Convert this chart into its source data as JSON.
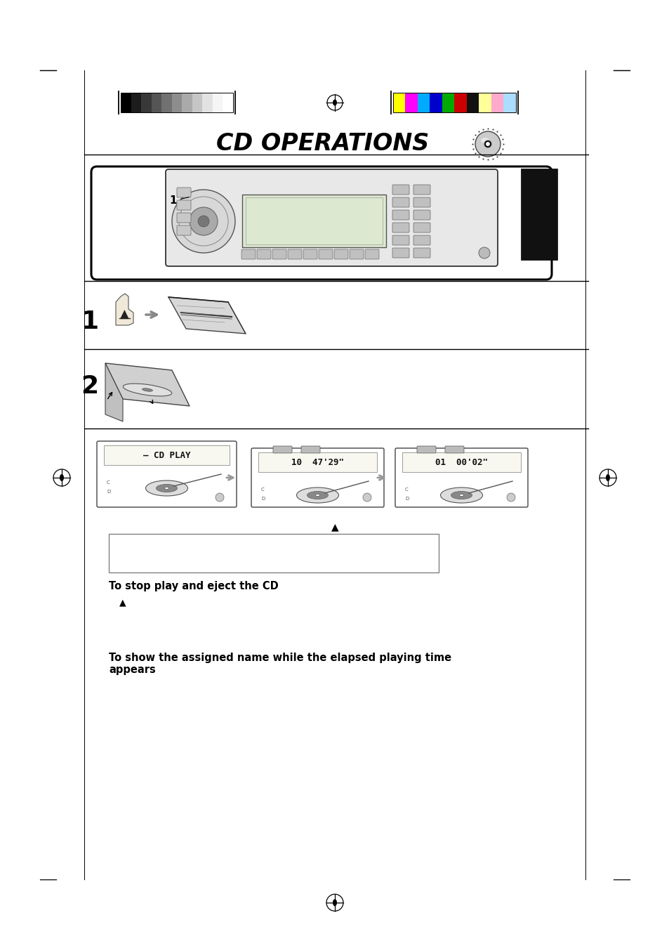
{
  "bg_color": "#ffffff",
  "title": "CD OPERATIONS",
  "title_fontsize": 24,
  "title_style": "italic",
  "title_weight": "bold",
  "grayscale_bar_colors": [
    "#000000",
    "#1c1c1c",
    "#383838",
    "#555555",
    "#717171",
    "#8d8d8d",
    "#aaaaaa",
    "#c6c6c6",
    "#e2e2e2",
    "#f5f5f5",
    "#ffffff"
  ],
  "color_bar_colors": [
    "#ffff00",
    "#ff00ff",
    "#00aaff",
    "#0000cc",
    "#00aa00",
    "#cc0000",
    "#111111",
    "#ffff99",
    "#ffaacc",
    "#aaddff"
  ],
  "step1_label": "1",
  "step2_label": "2",
  "stop_eject_title": "To stop play and eject the CD",
  "show_name_title": "To show the assigned name while the elapsed playing time\nappears",
  "eject_symbol": "▲",
  "panel_texts": [
    "— CD PLAY",
    "10  47'29\"",
    "01  00'02\""
  ],
  "note_box_text": ""
}
